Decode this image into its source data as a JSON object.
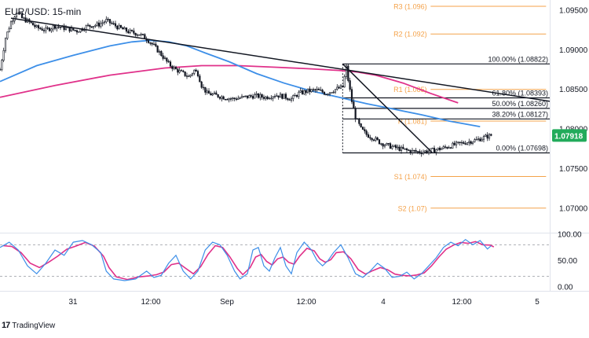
{
  "title": "EUR/USD: 15-min",
  "brand": "TradingView",
  "colors": {
    "candle": "#131722",
    "ma_blue": "#3d8fe8",
    "ma_pink": "#e0318a",
    "pivot": "#f4a24a",
    "fib": "#131722",
    "stoch_k": "#3d8fe8",
    "stoch_d": "#e0318a",
    "price_tag": "#22ab5b",
    "axis_text": "#131722"
  },
  "chart_data": [
    {
      "type": "candlestick",
      "ylim": [
        1.067,
        1.0955
      ],
      "y_ticks": [
        1.07,
        1.075,
        1.08,
        1.085,
        1.09,
        1.095
      ],
      "y_tick_labels": [
        "1.07000",
        "1.07500",
        "1.08000",
        "1.08500",
        "1.09000",
        "1.09500"
      ],
      "x_tick_labels": [
        "31",
        "12:00",
        "Sep",
        "12:00",
        "4",
        "12:00",
        "5"
      ],
      "last_price_label": "1.07918",
      "close_path": [
        [
          0,
          1.0875
        ],
        [
          3,
          1.0915
        ],
        [
          6,
          1.0935
        ],
        [
          9,
          1.0948
        ],
        [
          12,
          1.094
        ],
        [
          16,
          1.0935
        ],
        [
          20,
          1.0928
        ],
        [
          25,
          1.0925
        ],
        [
          30,
          1.093
        ],
        [
          36,
          1.0927
        ],
        [
          42,
          1.0924
        ],
        [
          48,
          1.093
        ],
        [
          54,
          1.0932
        ],
        [
          58,
          1.0937
        ],
        [
          64,
          1.0929
        ],
        [
          70,
          1.0923
        ],
        [
          76,
          1.092
        ],
        [
          80,
          1.0914
        ],
        [
          84,
          1.0905
        ],
        [
          88,
          1.0894
        ],
        [
          92,
          1.0882
        ],
        [
          96,
          1.0875
        ],
        [
          100,
          1.087
        ],
        [
          103,
          1.0866
        ],
        [
          106,
          1.0874
        ],
        [
          108,
          1.087
        ],
        [
          110,
          1.0855
        ],
        [
          113,
          1.0845
        ],
        [
          117,
          1.0843
        ],
        [
          122,
          1.084
        ],
        [
          127,
          1.0838
        ],
        [
          133,
          1.084
        ],
        [
          139,
          1.0842
        ],
        [
          145,
          1.084
        ],
        [
          150,
          1.0843
        ],
        [
          155,
          1.0841
        ],
        [
          159,
          1.0838
        ],
        [
          163,
          1.0845
        ],
        [
          168,
          1.0848
        ],
        [
          173,
          1.0849
        ],
        [
          178,
          1.0845
        ],
        [
          183,
          1.085
        ],
        [
          187,
          1.0853
        ],
        [
          189,
          1.0878
        ],
        [
          190,
          1.0862
        ],
        [
          192,
          1.0835
        ],
        [
          194,
          1.0815
        ],
        [
          197,
          1.08
        ],
        [
          200,
          1.0793
        ],
        [
          204,
          1.0788
        ],
        [
          208,
          1.0782
        ],
        [
          213,
          1.0778
        ],
        [
          218,
          1.0775
        ],
        [
          224,
          1.0772
        ],
        [
          230,
          1.0771
        ],
        [
          236,
          1.0773
        ],
        [
          242,
          1.0776
        ],
        [
          248,
          1.078
        ],
        [
          254,
          1.0783
        ],
        [
          260,
          1.0786
        ],
        [
          265,
          1.079
        ],
        [
          268,
          1.0792
        ]
      ],
      "ma_blue": [
        [
          0,
          1.086
        ],
        [
          20,
          1.088
        ],
        [
          40,
          1.0893
        ],
        [
          60,
          1.0905
        ],
        [
          72,
          1.091
        ],
        [
          82,
          1.0912
        ],
        [
          92,
          1.091
        ],
        [
          102,
          1.0905
        ],
        [
          112,
          1.0896
        ],
        [
          125,
          1.0885
        ],
        [
          140,
          1.087
        ],
        [
          155,
          1.0858
        ],
        [
          170,
          1.0848
        ],
        [
          185,
          1.084
        ],
        [
          200,
          1.0832
        ],
        [
          215,
          1.0825
        ],
        [
          230,
          1.0818
        ],
        [
          245,
          1.081
        ],
        [
          262,
          1.0803
        ]
      ],
      "ma_pink": [
        [
          0,
          1.084
        ],
        [
          30,
          1.0855
        ],
        [
          60,
          1.0868
        ],
        [
          90,
          1.0877
        ],
        [
          110,
          1.088
        ],
        [
          130,
          1.088
        ],
        [
          150,
          1.0878
        ],
        [
          170,
          1.0876
        ],
        [
          185,
          1.0874
        ],
        [
          195,
          1.0872
        ],
        [
          205,
          1.0868
        ],
        [
          220,
          1.0858
        ],
        [
          235,
          1.0845
        ],
        [
          250,
          1.0833
        ]
      ],
      "trendlines": [
        {
          "from": [
            6,
            1.094
          ],
          "to": [
            300,
            1.0835
          ]
        },
        {
          "from": [
            187,
            1.08822
          ],
          "to": [
            236,
            1.07698
          ]
        }
      ],
      "pivots": [
        {
          "label": "R3 (1.096)",
          "value": 1.0955
        },
        {
          "label": "R2 (1.092)",
          "value": 1.092
        },
        {
          "label": "R1 (1.085)",
          "value": 1.085
        },
        {
          "label": "P (1.081)",
          "value": 1.081
        },
        {
          "label": "S1 (1.074)",
          "value": 1.074
        },
        {
          "label": "S2 (1.07)",
          "value": 1.07
        }
      ],
      "fib_levels": [
        {
          "label": "100.00% (1.08822)",
          "value": 1.08822
        },
        {
          "label": "61.80% (1.08393)",
          "value": 1.08393
        },
        {
          "label": "50.00% (1.08260)",
          "value": 1.0826
        },
        {
          "label": "38.20% (1.08127)",
          "value": 1.08127
        },
        {
          "label": "0.00% (1.07698)",
          "value": 1.07698
        }
      ]
    },
    {
      "type": "line",
      "ylim": [
        0,
        100
      ],
      "y_tick_labels": [
        "100.00",
        "50.00",
        "0.00"
      ],
      "y_ticks": [
        100,
        50,
        0
      ],
      "bands": [
        80,
        20
      ],
      "k_path": [
        [
          0,
          75
        ],
        [
          5,
          85
        ],
        [
          10,
          70
        ],
        [
          15,
          40
        ],
        [
          20,
          25
        ],
        [
          25,
          45
        ],
        [
          30,
          70
        ],
        [
          35,
          60
        ],
        [
          40,
          85
        ],
        [
          45,
          88
        ],
        [
          50,
          80
        ],
        [
          55,
          65
        ],
        [
          58,
          30
        ],
        [
          62,
          15
        ],
        [
          68,
          12
        ],
        [
          74,
          15
        ],
        [
          80,
          30
        ],
        [
          84,
          18
        ],
        [
          88,
          22
        ],
        [
          92,
          45
        ],
        [
          96,
          60
        ],
        [
          100,
          30
        ],
        [
          104,
          15
        ],
        [
          108,
          30
        ],
        [
          112,
          70
        ],
        [
          116,
          85
        ],
        [
          120,
          80
        ],
        [
          124,
          60
        ],
        [
          128,
          30
        ],
        [
          131,
          15
        ],
        [
          135,
          25
        ],
        [
          138,
          70
        ],
        [
          141,
          75
        ],
        [
          144,
          40
        ],
        [
          147,
          30
        ],
        [
          150,
          55
        ],
        [
          153,
          75
        ],
        [
          156,
          40
        ],
        [
          159,
          25
        ],
        [
          162,
          65
        ],
        [
          166,
          85
        ],
        [
          170,
          70
        ],
        [
          173,
          50
        ],
        [
          176,
          40
        ],
        [
          179,
          50
        ],
        [
          182,
          65
        ],
        [
          186,
          80
        ],
        [
          190,
          55
        ],
        [
          194,
          25
        ],
        [
          198,
          18
        ],
        [
          202,
          30
        ],
        [
          206,
          45
        ],
        [
          210,
          35
        ],
        [
          214,
          18
        ],
        [
          218,
          20
        ],
        [
          222,
          28
        ],
        [
          226,
          15
        ],
        [
          230,
          25
        ],
        [
          234,
          40
        ],
        [
          238,
          55
        ],
        [
          242,
          75
        ],
        [
          246,
          85
        ],
        [
          250,
          78
        ],
        [
          254,
          90
        ],
        [
          258,
          80
        ],
        [
          262,
          88
        ],
        [
          266,
          72
        ],
        [
          268,
          78
        ]
      ]
    }
  ]
}
